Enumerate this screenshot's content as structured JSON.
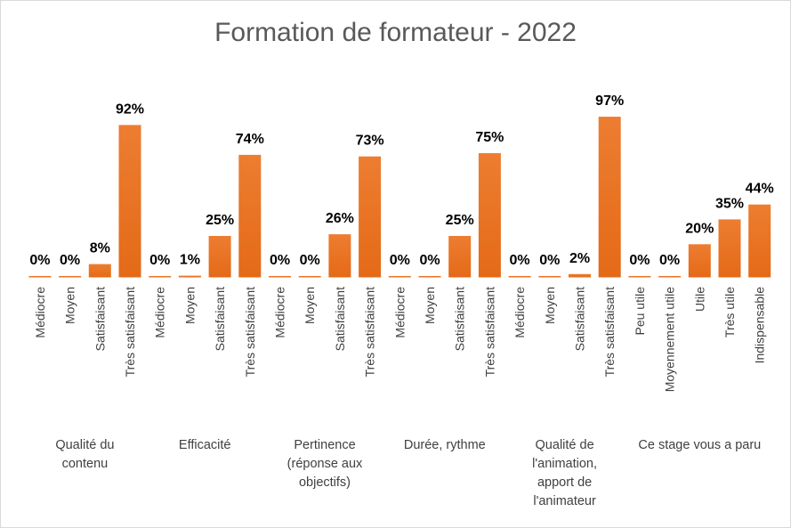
{
  "chart_data": {
    "type": "bar",
    "title": "Formation de formateur - 2022",
    "bar_color": "#ED7D31",
    "value_unit": "%",
    "ylim": [
      0,
      100
    ],
    "grid": false,
    "legend": "none",
    "groups": [
      {
        "name": "Qualité du\ncontenu",
        "categories": [
          "Médiocre",
          "Moyen",
          "Satisfaisant",
          "Très satisfaisant"
        ],
        "values": [
          0,
          0,
          8,
          92
        ]
      },
      {
        "name": "Efficacité",
        "categories": [
          "Médiocre",
          "Moyen",
          "Satisfaisant",
          "Très satisfaisant"
        ],
        "values": [
          0,
          1,
          25,
          74
        ]
      },
      {
        "name": "Pertinence\n(réponse aux\nobjectifs)",
        "categories": [
          "Médiocre",
          "Moyen",
          "Satisfaisant",
          "Très satisfaisant"
        ],
        "values": [
          0,
          0,
          26,
          73
        ]
      },
      {
        "name": "Durée, rythme",
        "categories": [
          "Médiocre",
          "Moyen",
          "Satisfaisant",
          "Très satisfaisant"
        ],
        "values": [
          0,
          0,
          25,
          75
        ]
      },
      {
        "name": "Qualité de\nl'animation,\napport de\nl'animateur",
        "categories": [
          "Médiocre",
          "Moyen",
          "Satisfaisant",
          "Très satisfaisant"
        ],
        "values": [
          0,
          0,
          2,
          97
        ]
      },
      {
        "name": "Ce stage vous a paru",
        "categories": [
          "Peu utile",
          "Moyennement utile",
          "Utile",
          "Très utile",
          "Indispensable"
        ],
        "values": [
          0,
          0,
          20,
          35,
          44
        ]
      }
    ]
  }
}
